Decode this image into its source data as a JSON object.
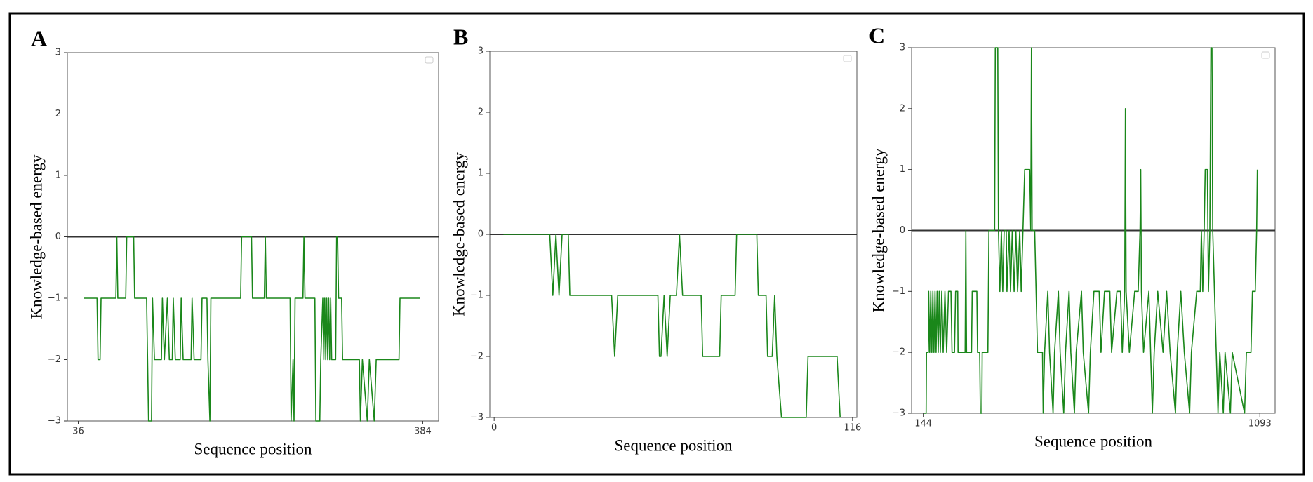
{
  "chart_data": [
    {
      "type": "line",
      "panel_label": "A",
      "xlabel": "Sequence position",
      "ylabel": "Knowledge-based energy",
      "xlim": [
        25,
        400
      ],
      "xticks": [
        36,
        384
      ],
      "ylim": [
        -3,
        3
      ],
      "yticks": [
        {
          "value": -3,
          "label": "−3"
        },
        {
          "value": -2,
          "label": "−2"
        },
        {
          "value": -1,
          "label": "−1"
        },
        0,
        1,
        2,
        3
      ],
      "hline": 0,
      "hline_color": "#333333",
      "x": [
        42,
        55,
        56,
        58,
        59,
        74,
        75,
        76,
        84,
        85,
        92,
        93,
        105,
        106,
        107,
        110,
        111,
        113,
        120,
        121,
        123,
        126,
        128,
        131,
        132,
        134,
        139,
        140,
        142,
        150,
        151,
        153,
        160,
        161,
        166,
        167,
        169,
        170,
        200,
        201,
        211,
        212,
        224,
        225,
        226,
        250,
        251,
        253,
        254,
        255,
        263,
        264,
        265,
        275,
        276,
        280,
        281,
        283,
        284,
        285,
        286,
        287,
        288,
        289,
        290,
        291,
        292,
        296,
        297,
        298,
        299,
        302,
        303,
        320,
        321,
        323,
        328,
        330,
        335,
        337,
        342,
        360,
        361,
        381
      ],
      "series": [
        {
          "color": "#1a871a",
          "values": [
            -1,
            -1,
            -2,
            -2,
            -1,
            -1,
            0,
            -1,
            -1,
            0,
            0,
            -1,
            -1,
            -2,
            -3,
            -3,
            -1,
            -2,
            -2,
            -1,
            -2,
            -1,
            -2,
            -2,
            -1,
            -2,
            -2,
            -1,
            -2,
            -2,
            -1,
            -2,
            -2,
            -1,
            -1,
            -2,
            -3,
            -1,
            -1,
            0,
            0,
            -1,
            -1,
            0,
            -1,
            -1,
            -3,
            -2,
            -3,
            -1,
            -1,
            0,
            -1,
            -1,
            -3,
            -3,
            -2,
            -1,
            -2,
            -1,
            -2,
            -1,
            -2,
            -1,
            -2,
            -1,
            -2,
            -2,
            0,
            0,
            -1,
            -1,
            -2,
            -2,
            -3,
            -2,
            -3,
            -2,
            -3,
            -2,
            -2,
            -2,
            -1,
            -1
          ]
        }
      ]
    },
    {
      "type": "line",
      "panel_label": "B",
      "xlabel": "Sequence position",
      "ylabel": "Knowledge-based energy",
      "xlim": [
        -1.4,
        117.4
      ],
      "xticks": [
        0,
        116
      ],
      "ylim": [
        -3,
        3
      ],
      "yticks": [
        {
          "value": -3,
          "label": "−3"
        },
        {
          "value": -2,
          "label": "−2"
        },
        {
          "value": -1,
          "label": "−1"
        },
        0,
        1,
        2,
        3
      ],
      "hline": 0,
      "hline_color": "#333333",
      "x": [
        3,
        18,
        19,
        20,
        21,
        22,
        24,
        24.5,
        38,
        39,
        40,
        53,
        53.5,
        54,
        55,
        56,
        57,
        59,
        60,
        61,
        67,
        67.5,
        73,
        73.5,
        78,
        78.5,
        85,
        85.5,
        88,
        88.5,
        90,
        90.8,
        91.5,
        93,
        101,
        101.6,
        111,
        112
      ],
      "series": [
        {
          "color": "#1a871a",
          "values": [
            0,
            0,
            -1,
            0,
            -1,
            0,
            0,
            -1,
            -1,
            -2,
            -1,
            -1,
            -2,
            -2,
            -1,
            -2,
            -1,
            -1,
            0,
            -1,
            -1,
            -2,
            -2,
            -1,
            -1,
            0,
            0,
            -1,
            -1,
            -2,
            -2,
            -1,
            -2,
            -3,
            -3,
            -2,
            -2,
            -3
          ]
        }
      ]
    },
    {
      "type": "line",
      "panel_label": "C",
      "xlabel": "Sequence position",
      "ylabel": "Knowledge-based energy",
      "xlim": [
        111,
        1136
      ],
      "xticks": [
        144,
        1093
      ],
      "ylim": [
        -3,
        3
      ],
      "yticks": [
        {
          "value": -3,
          "label": "−3"
        },
        {
          "value": -2,
          "label": "−2"
        },
        {
          "value": -1,
          "label": "−1"
        },
        0,
        1,
        2,
        3
      ],
      "hline": 0,
      "hline_color": "#333333",
      "x": [
        146,
        152,
        153,
        158,
        159,
        162,
        165,
        168,
        171,
        174,
        177,
        180,
        183,
        186,
        189,
        192,
        196,
        200,
        205,
        210,
        215,
        222,
        225,
        232,
        235,
        241,
        242,
        262,
        264,
        266,
        280,
        282,
        295,
        297,
        303,
        305,
        309,
        310,
        326,
        329,
        345,
        347,
        354,
        356,
        360,
        364,
        368,
        372,
        378,
        380,
        386,
        390,
        395,
        400,
        405,
        410,
        416,
        420,
        425,
        430,
        444,
        447,
        449,
        451,
        458,
        462,
        466,
        480,
        482,
        486,
        495,
        500,
        510,
        514,
        525,
        530,
        540,
        545,
        555,
        560,
        570,
        575,
        590,
        595,
        610,
        615,
        625,
        640,
        645,
        655,
        670,
        675,
        690,
        700,
        705,
        712,
        714,
        716,
        725,
        740,
        750,
        755,
        757,
        759,
        765,
        780,
        790,
        795,
        805,
        820,
        830,
        840,
        855,
        860,
        870,
        880,
        895,
        900,
        915,
        925,
        928,
        932,
        936,
        939,
        945,
        948,
        952,
        955,
        958,
        960,
        965,
        970,
        975,
        980,
        990,
        995,
        1010,
        1015,
        1050,
        1055,
        1068,
        1072,
        1080,
        1084,
        1086
      ],
      "series": [
        {
          "color": "#1a871a",
          "values": [
            -3,
            -3,
            -2,
            -2,
            -1,
            -2,
            -1,
            -2,
            -1,
            -2,
            -1,
            -2,
            -1,
            -2,
            -1,
            -2,
            -1,
            -2,
            -1,
            -2,
            -1,
            -1,
            -2,
            -2,
            -1,
            -1,
            -2,
            -2,
            0,
            -2,
            -2,
            -1,
            -1,
            -2,
            -2,
            -3,
            -3,
            -2,
            -2,
            0,
            0,
            3,
            3,
            0,
            -1,
            0,
            -1,
            0,
            0,
            -1,
            0,
            -1,
            0,
            -1,
            0,
            -1,
            0,
            -1,
            0,
            1,
            1,
            0,
            3,
            0,
            0,
            -1,
            -2,
            -2,
            -3,
            -2,
            -1,
            -2,
            -3,
            -2,
            -1,
            -2,
            -3,
            -2,
            -1,
            -2,
            -3,
            -2,
            -1,
            -2,
            -3,
            -2,
            -1,
            -1,
            -2,
            -1,
            -1,
            -2,
            -1,
            -1,
            -2,
            -1,
            2,
            -1,
            -2,
            -1,
            -1,
            0,
            1,
            -1,
            -2,
            -1,
            -3,
            -2,
            -1,
            -2,
            -1,
            -2,
            -3,
            -2,
            -1,
            -2,
            -3,
            -2,
            -1,
            -1,
            0,
            -1,
            0,
            1,
            1,
            -1,
            0,
            3,
            3,
            0,
            -1,
            -2,
            -3,
            -2,
            -3,
            -2,
            -3,
            -2,
            -3,
            -2,
            -2,
            -1,
            -1,
            0,
            1
          ]
        }
      ]
    }
  ]
}
